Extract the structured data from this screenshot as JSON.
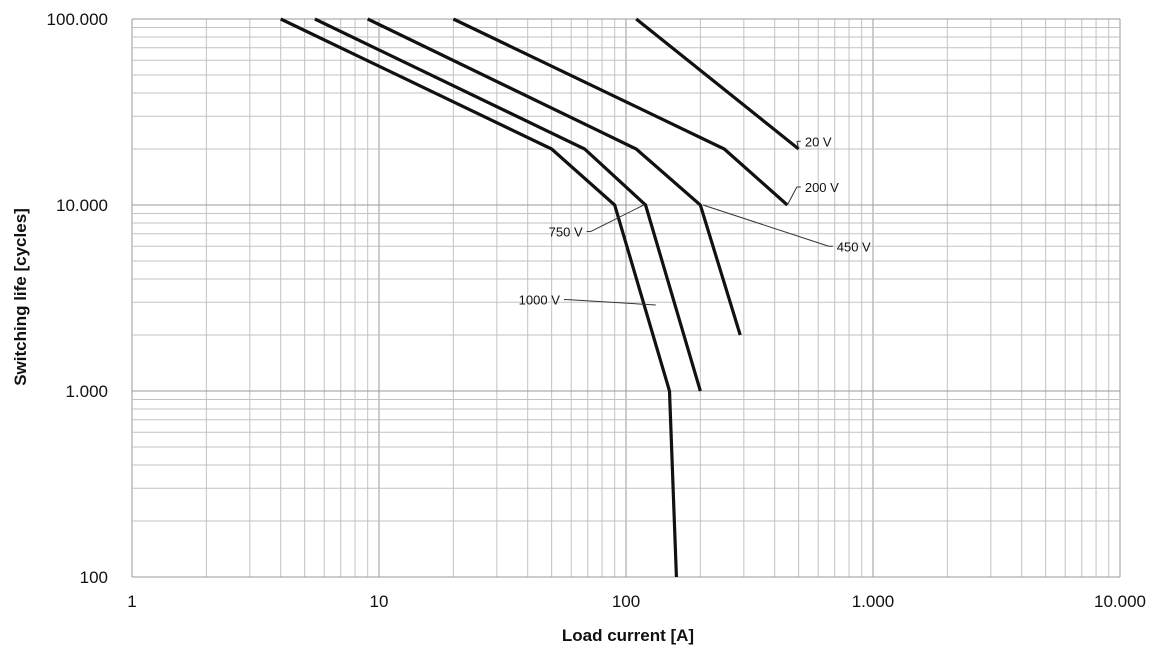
{
  "chart_data": {
    "type": "line",
    "title": "",
    "xlabel": "Load current [A]",
    "ylabel": "Switching life [cycles]",
    "x_scale": "log",
    "y_scale": "log",
    "xlim": [
      1,
      10000
    ],
    "ylim": [
      100,
      100000
    ],
    "x_tick_values": [
      1,
      10,
      100,
      1000,
      10000
    ],
    "x_tick_labels": [
      "1",
      "10",
      "100",
      "1.000",
      "10.000"
    ],
    "y_tick_values": [
      100,
      1000,
      10000,
      100000
    ],
    "y_tick_labels": [
      "100",
      "1.000",
      "10.000",
      "100.000"
    ],
    "grid": true,
    "legend": "none",
    "line_color": "#111111",
    "series": [
      {
        "name": "20 V",
        "x": [
          110,
          500
        ],
        "y": [
          100000,
          20000
        ]
      },
      {
        "name": "200 V",
        "x": [
          20,
          250,
          450
        ],
        "y": [
          100000,
          20000,
          10000
        ]
      },
      {
        "name": "450 V",
        "x": [
          9,
          110,
          200,
          290
        ],
        "y": [
          100000,
          20000,
          10000,
          2000
        ]
      },
      {
        "name": "750 V",
        "x": [
          5.5,
          68,
          120,
          200
        ],
        "y": [
          100000,
          20000,
          10000,
          1000
        ]
      },
      {
        "name": "1000 V",
        "x": [
          4,
          50,
          90,
          150,
          160
        ],
        "y": [
          100000,
          20000,
          10000,
          1000,
          100
        ]
      }
    ],
    "annotations": [
      {
        "series": "20 V",
        "label": "20 V",
        "x": 520,
        "y": 22000,
        "point_x": 500,
        "point_y": 20000,
        "side": "right"
      },
      {
        "series": "200 V",
        "label": "200 V",
        "x": 520,
        "y": 12500,
        "point_x": 450,
        "point_y": 10000,
        "side": "right"
      },
      {
        "series": "450 V",
        "label": "450 V",
        "x": 700,
        "y": 6000,
        "point_x": 205,
        "point_y": 10000,
        "side": "right"
      },
      {
        "series": "750 V",
        "label": "750 V",
        "x": 68,
        "y": 7200,
        "point_x": 118,
        "point_y": 10000,
        "side": "left"
      },
      {
        "series": "1000 V",
        "label": "1000 V",
        "x": 55,
        "y": 3100,
        "point_x": 132,
        "point_y": 2900,
        "side": "left"
      }
    ]
  }
}
